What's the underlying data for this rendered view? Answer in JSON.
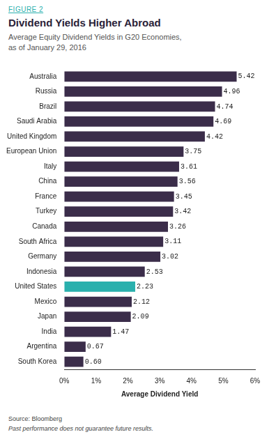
{
  "chart_data": {
    "type": "bar",
    "label": "FIGURE 2",
    "title": "Dividend Yields Higher Abroad",
    "subtitle": [
      "Average Equity Dividend Yields in G20 Economies,",
      "as of January 29, 2016"
    ],
    "x_label": "Average Dividend Yield",
    "source": "Source: Bloomberg",
    "note": "Past performance does not guarantee future results.",
    "orientation": "horizontal",
    "categories": [
      "Australia",
      "Russia",
      "Brazil",
      "Saudi Arabia",
      "United Kingdom",
      "European Union",
      "Italy",
      "China",
      "France",
      "Turkey",
      "Canada",
      "South Africa",
      "Germany",
      "Indonesia",
      "United States",
      "Mexico",
      "Japan",
      "India",
      "Argentina",
      "South Korea"
    ],
    "values": [
      5.42,
      4.96,
      4.74,
      4.69,
      4.42,
      3.75,
      3.61,
      3.56,
      3.45,
      3.42,
      3.26,
      3.11,
      3.02,
      2.53,
      2.23,
      2.12,
      2.09,
      1.47,
      0.67,
      0.6
    ],
    "value_labels": [
      "5.42",
      "4.96",
      "4.74",
      "4.69",
      "4.42",
      "3.75",
      "3.61",
      "3.56",
      "3.45",
      "3.42",
      "3.26",
      "3.11",
      "3.02",
      "2.53",
      "2.23",
      "2.12",
      "2.09",
      "1.47",
      "0.67",
      "0.60"
    ],
    "colors": [
      "#3b2d4a",
      "#3b2d4a",
      "#3b2d4a",
      "#3b2d4a",
      "#3b2d4a",
      "#3b2d4a",
      "#3b2d4a",
      "#3b2d4a",
      "#3b2d4a",
      "#3b2d4a",
      "#3b2d4a",
      "#3b2d4a",
      "#3b2d4a",
      "#3b2d4a",
      "#2ab0ad",
      "#3b2d4a",
      "#3b2d4a",
      "#3b2d4a",
      "#3b2d4a",
      "#3b2d4a"
    ],
    "xlim": [
      0,
      6
    ],
    "xticks": [
      {
        "value": 0,
        "label": "0%"
      },
      {
        "value": 1,
        "label": "1%"
      },
      {
        "value": 2,
        "label": "2%"
      },
      {
        "value": 3,
        "label": "3%"
      },
      {
        "value": 4,
        "label": "4%"
      },
      {
        "value": 5,
        "label": "5%"
      },
      {
        "value": 6,
        "label": "6%"
      }
    ],
    "grid": false,
    "data_labels": true
  }
}
